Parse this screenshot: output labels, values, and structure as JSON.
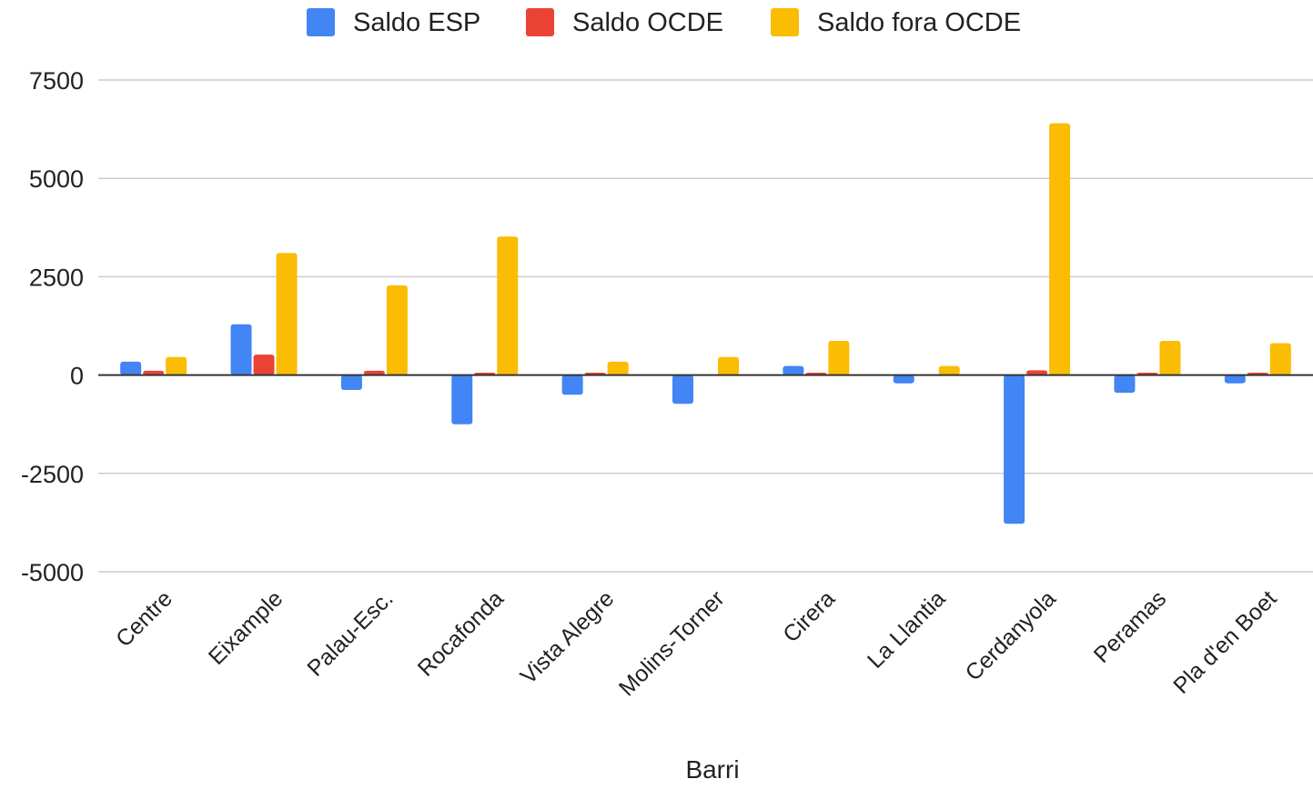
{
  "chart_data": {
    "type": "bar",
    "title": "",
    "xlabel": "Barri",
    "ylabel": "",
    "ylim": [
      -5000,
      7500
    ],
    "yticks": [
      7500,
      5000,
      2500,
      0,
      -2500,
      -5000
    ],
    "ytick_labels": [
      "7500",
      "5000",
      "2500",
      "0",
      "-2500",
      "-5000"
    ],
    "grid": true,
    "legend_position": "top",
    "categories": [
      "Centre",
      "Eixample",
      "Palau-Esc.",
      "Rocafonda",
      "Vista Alegre",
      "Molins-Torner",
      "Cirera",
      "La Llantia",
      "Cerdanyola",
      "Peramas",
      "Pla d'en Boet"
    ],
    "series": [
      {
        "name": "Saldo ESP",
        "color": "#4285f4",
        "values": [
          340,
          1290,
          -380,
          -1250,
          -500,
          -730,
          230,
          -210,
          -3780,
          -450,
          -210
        ]
      },
      {
        "name": "Saldo OCDE",
        "color": "#ea4335",
        "values": [
          110,
          520,
          110,
          60,
          60,
          0,
          60,
          0,
          120,
          60,
          60
        ]
      },
      {
        "name": "Saldo fora OCDE",
        "color": "#fbbc04",
        "values": [
          460,
          3100,
          2280,
          3520,
          340,
          460,
          870,
          230,
          6400,
          870,
          810
        ]
      }
    ]
  }
}
